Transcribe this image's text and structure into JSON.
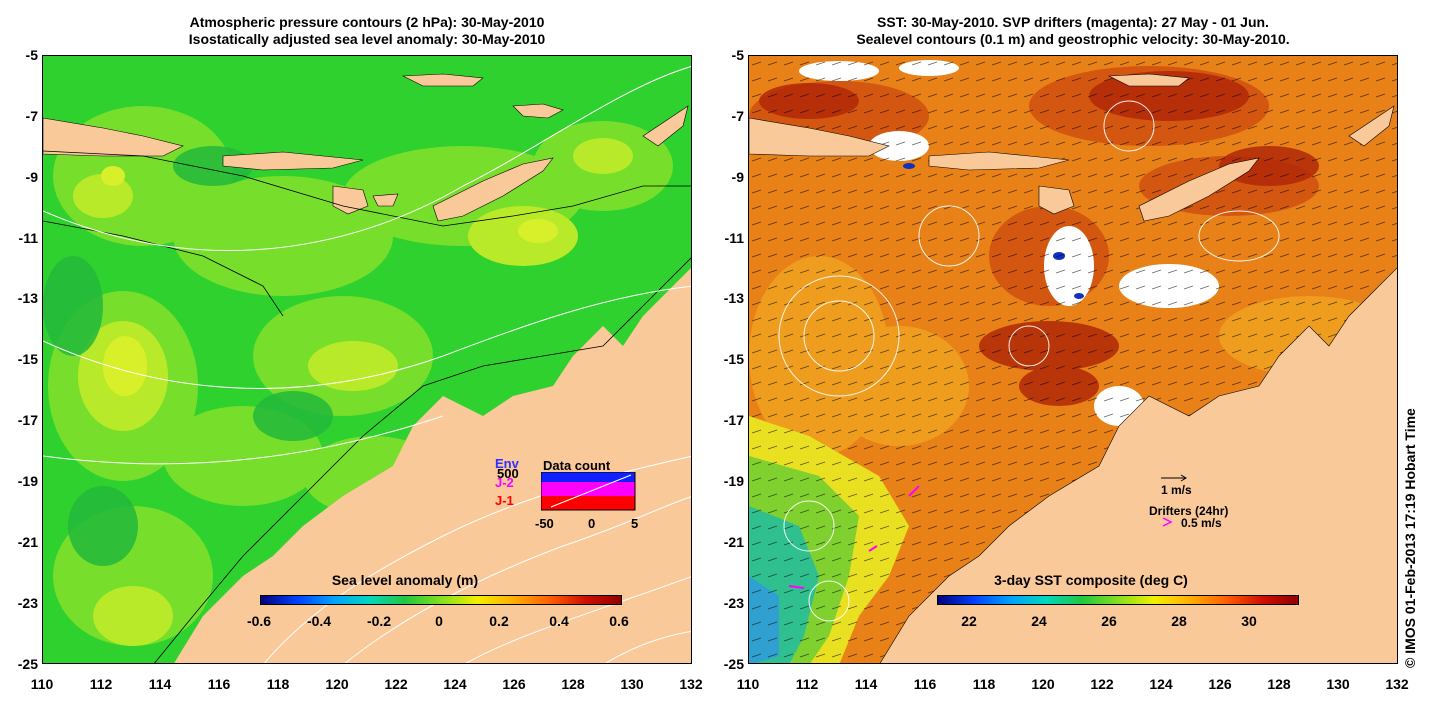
{
  "left_panel": {
    "title_line1": "Atmospheric pressure contours (2 hPa): 30-May-2010",
    "title_line2": "Isostatically adjusted sea level anomaly: 30-May-2010",
    "colorbar_title": "Sea level anomaly (m)",
    "colorbar_ticks": [
      "-0.6",
      "-0.4",
      "-0.2",
      "0",
      "0.2",
      "0.4",
      "0.6"
    ],
    "inset": {
      "title": "Data count",
      "legend": [
        {
          "label": "Env",
          "color": "#3030ff"
        },
        {
          "label": "500",
          "color": "#000000"
        },
        {
          "label": "J-2",
          "color": "#ff00ff"
        },
        {
          "label": "J-1",
          "color": "#ff0000"
        }
      ],
      "x_ticks": [
        "-50",
        "0",
        "5"
      ]
    }
  },
  "right_panel": {
    "title_line1": "SST: 30-May-2010. SVP drifters (magenta): 27 May - 01 Jun.",
    "title_line2": "Sealevel contours (0.1 m) and geostrophic velocity: 30-May-2010.",
    "colorbar_title": "3-day SST composite (deg C)",
    "colorbar_ticks": [
      "22",
      "24",
      "26",
      "28",
      "30"
    ],
    "velocity_scale_label": "1 m/s",
    "drifters_label": "Drifters (24hr)",
    "drifter_scale_label": "0.5 m/s"
  },
  "axes": {
    "y_ticks": [
      "-5",
      "-7",
      "-9",
      "-11",
      "-13",
      "-15",
      "-17",
      "-19",
      "-21",
      "-23",
      "-25"
    ],
    "x_ticks": [
      "110",
      "112",
      "114",
      "116",
      "118",
      "120",
      "122",
      "124",
      "126",
      "128",
      "130",
      "132"
    ]
  },
  "credit": "© IMOS 01-Feb-2013 17:19 Hobart Time",
  "colors": {
    "land": "#fac99a",
    "sla_base": "#2ed12e",
    "sst_base": "#e88218"
  }
}
